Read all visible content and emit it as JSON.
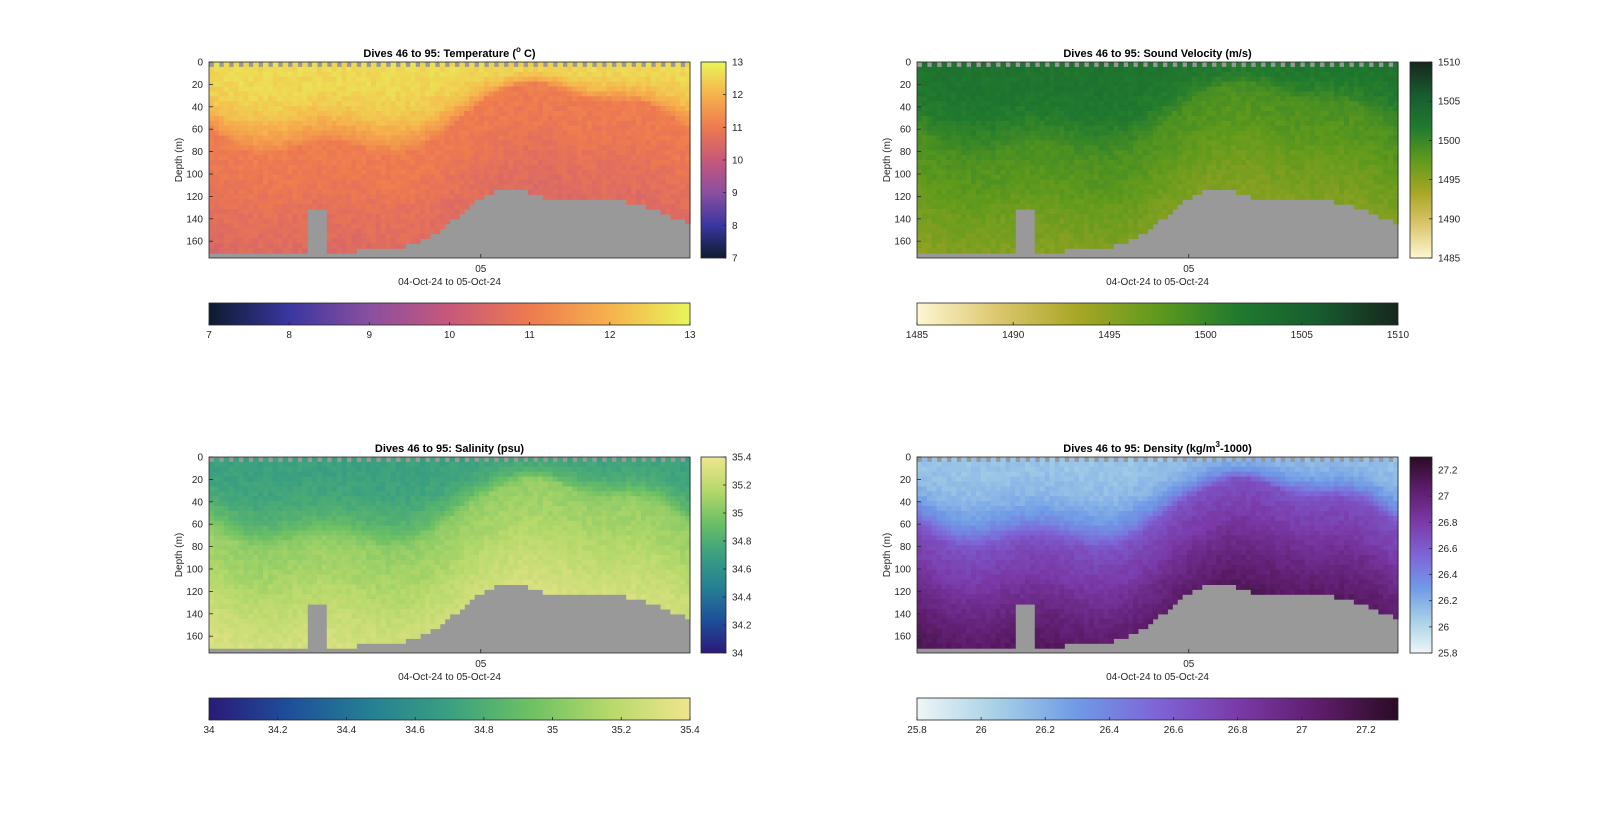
{
  "chart_data": [
    {
      "id": "temp",
      "type": "heatmap",
      "title": "Dives 46 to 95: Temperature (",
      "title_sup": "o",
      "title_rest": " C)",
      "ylabel": "Depth (m)",
      "xlabel": "04-Oct-24 to 05-Oct-24",
      "xtick": "05",
      "yticks": [
        0,
        20,
        40,
        60,
        80,
        100,
        120,
        140,
        160
      ],
      "ylim": [
        0,
        175
      ],
      "colorbar": {
        "min": 7,
        "max": 13,
        "ticks": [
          "7",
          "8",
          "9",
          "10",
          "11",
          "12",
          "13"
        ]
      },
      "colormap": [
        "#0d1b2e",
        "#3a36a0",
        "#8a4fa0",
        "#c7587a",
        "#ee7a4f",
        "#f6b24c",
        "#e8f55a"
      ],
      "layers": {
        "surface": 11.2,
        "mid": 10.9,
        "deep": 10.4,
        "sfc_value": 12.6
      }
    },
    {
      "id": "sv",
      "type": "heatmap",
      "title": "Dives 46 to 95: Sound Velocity (m/s)",
      "ylabel": "Depth (m)",
      "xlabel": "04-Oct-24 to 05-Oct-24",
      "xtick": "05",
      "yticks": [
        0,
        20,
        40,
        60,
        80,
        100,
        120,
        140,
        160
      ],
      "ylim": [
        0,
        175
      ],
      "colorbar": {
        "min": 1485,
        "max": 1510,
        "ticks": [
          "1485",
          "1490",
          "1495",
          "1500",
          "1505",
          "1510"
        ]
      },
      "colormap": [
        "#fdf7d2",
        "#dcc76e",
        "#a8a626",
        "#5f9a1c",
        "#207a2e",
        "#175c2f",
        "#17261d"
      ],
      "layers": {
        "surface": 1500.5,
        "mid": 1497.5,
        "deep": 1494.5,
        "sfc_value": 1502.5
      }
    },
    {
      "id": "sal",
      "type": "heatmap",
      "title": "Dives 46 to 95: Salinity (psu)",
      "ylabel": "Depth (m)",
      "xlabel": "04-Oct-24 to 05-Oct-24",
      "xtick": "05",
      "yticks": [
        0,
        20,
        40,
        60,
        80,
        100,
        120,
        140,
        160
      ],
      "ylim": [
        0,
        175
      ],
      "colorbar": {
        "min": 34,
        "max": 35.4,
        "ticks": [
          "34",
          "34.2",
          "34.4",
          "34.6",
          "34.8",
          "35",
          "35.2",
          "35.4"
        ]
      },
      "colormap": [
        "#2a1a78",
        "#1e4f9a",
        "#257f94",
        "#3aa080",
        "#6cc064",
        "#b6d96a",
        "#f0e58e"
      ],
      "layers": {
        "surface": 34.95,
        "mid": 35.15,
        "deep": 35.35,
        "sfc_value": 34.7
      }
    },
    {
      "id": "dens",
      "type": "heatmap",
      "title": "Dives 46 to 95: Density (kg/m",
      "title_sup": "3",
      "title_rest": "-1000)",
      "ylabel": "Depth (m)",
      "xlabel": "04-Oct-24 to 05-Oct-24",
      "xtick": "05",
      "yticks": [
        0,
        20,
        40,
        60,
        80,
        100,
        120,
        140,
        160
      ],
      "ylim": [
        0,
        175
      ],
      "colorbar": {
        "min": 25.8,
        "max": 27.3,
        "ticks": [
          "25.8",
          "26",
          "26.2",
          "26.4",
          "26.6",
          "26.8",
          "27",
          "27.2"
        ]
      },
      "colormap": [
        "#eef6f6",
        "#a6d0e6",
        "#6f9ae6",
        "#7e64d6",
        "#7a3aa8",
        "#5e1d6c",
        "#2b0b24"
      ],
      "layers": {
        "surface": 26.45,
        "mid": 26.85,
        "deep": 27.2,
        "sfc_value": 26.1
      }
    }
  ]
}
